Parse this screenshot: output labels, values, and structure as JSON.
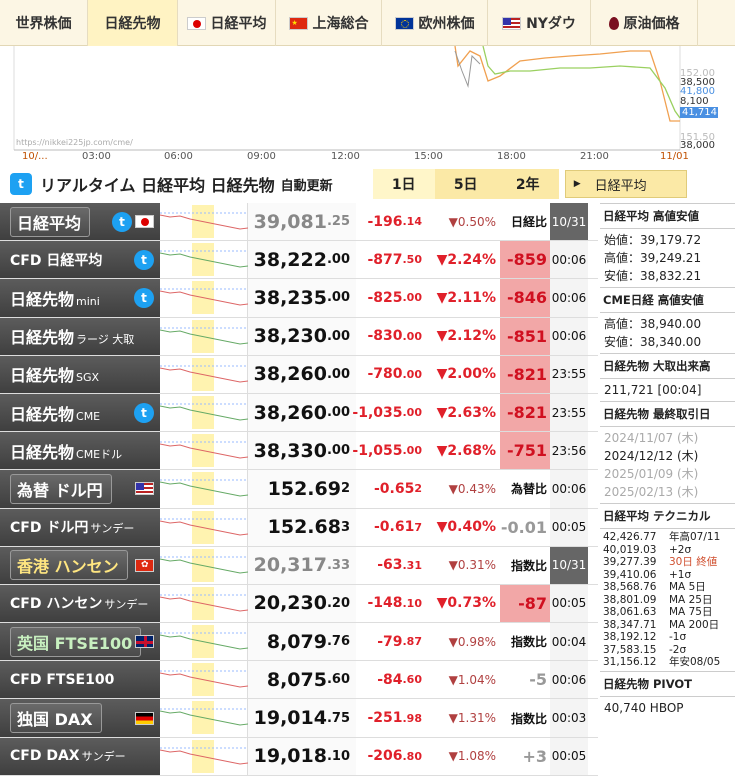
{
  "tabs": [
    {
      "label": "世界株価",
      "flag": "none"
    },
    {
      "label": "日経先物",
      "flag": "none",
      "active": true
    },
    {
      "label": "日経平均",
      "flag": "jp"
    },
    {
      "label": "上海総合",
      "flag": "cn"
    },
    {
      "label": "欧州株価",
      "flag": "eu"
    },
    {
      "label": "NYダウ",
      "flag": "us"
    },
    {
      "label": "原油価格",
      "flag": "oil"
    }
  ],
  "topchart": {
    "watermark": "https://nikkei225jp.com/cme/",
    "times": [
      "10/...",
      "03:00",
      "06:00",
      "09:00",
      "12:00",
      "15:00",
      "18:00",
      "21:00",
      "11/01"
    ],
    "axis": [
      "152.00",
      "38,500",
      "41,800",
      "8,100",
      "38,250",
      "41,714.9",
      "151.50",
      "38,000"
    ]
  },
  "header": {
    "title": "リアルタイム 日経平均 日経先物",
    "auto": "自動更新",
    "periods": [
      "1日",
      "5日",
      "2年"
    ],
    "link": "日経平均"
  },
  "rows": [
    {
      "name": "日経平均",
      "sub": "",
      "tw": true,
      "flag": "jp",
      "box": true,
      "price": "39,081",
      "pdec": ".25",
      "chg": "-196",
      "cdec": ".14",
      "pct": "▼0.50%",
      "diff": "日経比",
      "time": "10/31",
      "gray": true,
      "red": false,
      "dk": true
    },
    {
      "name": "CFD 日経平均",
      "sub": "",
      "tw": true,
      "flag": "",
      "box": false,
      "price": "38,222",
      "pdec": ".00",
      "chg": "-877",
      "cdec": ".50",
      "pct": "▼2.24%",
      "diff": "-859",
      "time": "00:06",
      "gray": false,
      "red": true,
      "dk": false
    },
    {
      "name": "日経先物",
      "sub": "mini",
      "tw": true,
      "flag": "",
      "box": false,
      "price": "38,235",
      "pdec": ".00",
      "chg": "-825",
      "cdec": ".00",
      "pct": "▼2.11%",
      "diff": "-846",
      "time": "00:06",
      "gray": false,
      "red": true,
      "dk": false
    },
    {
      "name": "日経先物",
      "sub": "ラージ 大取",
      "tw": false,
      "flag": "",
      "box": false,
      "price": "38,230",
      "pdec": ".00",
      "chg": "-830",
      "cdec": ".00",
      "pct": "▼2.12%",
      "diff": "-851",
      "time": "00:06",
      "gray": false,
      "red": true,
      "dk": false
    },
    {
      "name": "日経先物",
      "sub": "SGX",
      "tw": false,
      "flag": "",
      "box": false,
      "price": "38,260",
      "pdec": ".00",
      "chg": "-780",
      "cdec": ".00",
      "pct": "▼2.00%",
      "diff": "-821",
      "time": "23:55",
      "gray": false,
      "red": true,
      "dk": false
    },
    {
      "name": "日経先物",
      "sub": "CME",
      "tw": true,
      "flag": "",
      "box": false,
      "price": "38,260",
      "pdec": ".00",
      "chg": "-1,035",
      "cdec": ".00",
      "pct": "▼2.63%",
      "diff": "-821",
      "time": "23:55",
      "gray": false,
      "red": true,
      "dk": false
    },
    {
      "name": "日経先物",
      "sub": "CMEドル",
      "tw": false,
      "flag": "",
      "box": false,
      "price": "38,330",
      "pdec": ".00",
      "chg": "-1,055",
      "cdec": ".00",
      "pct": "▼2.68%",
      "diff": "-751",
      "time": "23:56",
      "gray": false,
      "red": true,
      "dk": false
    },
    {
      "name": "為替 ドル円",
      "sub": "",
      "tw": false,
      "flag": "us",
      "box": true,
      "price": "152.69",
      "pdec": "2",
      "chg": "-0.65",
      "cdec": "2",
      "pct": "▼0.43%",
      "diff": "為替比",
      "time": "00:06",
      "gray": false,
      "red": false,
      "dk": false
    },
    {
      "name": "CFD ドル円",
      "sub": "サンデー",
      "tw": false,
      "flag": "",
      "box": false,
      "price": "152.68",
      "pdec": "3",
      "chg": "-0.61",
      "cdec": "7",
      "pct": "▼0.40%",
      "diff": "-0.01",
      "time": "00:05",
      "gray": false,
      "red": false,
      "dk": false
    },
    {
      "name": "香港 ハンセン",
      "sub": "",
      "tw": false,
      "flag": "hk",
      "box": true,
      "price": "20,317",
      "pdec": ".33",
      "chg": "-63",
      "cdec": ".31",
      "pct": "▼0.31%",
      "diff": "指数比",
      "time": "10/31",
      "gray": true,
      "red": false,
      "dk": true
    },
    {
      "name": "CFD ハンセン",
      "sub": "サンデー",
      "tw": false,
      "flag": "",
      "box": false,
      "price": "20,230",
      "pdec": ".20",
      "chg": "-148",
      "cdec": ".10",
      "pct": "▼0.73%",
      "diff": "-87",
      "time": "00:05",
      "gray": false,
      "red": true,
      "dk": false
    },
    {
      "name": "英国 FTSE100",
      "sub": "",
      "tw": false,
      "flag": "uk",
      "box": true,
      "price": "8,079",
      "pdec": ".76",
      "chg": "-79",
      "cdec": ".87",
      "pct": "▼0.98%",
      "diff": "指数比",
      "time": "00:04",
      "gray": false,
      "red": false,
      "dk": false
    },
    {
      "name": "CFD FTSE100",
      "sub": "",
      "tw": false,
      "flag": "",
      "box": false,
      "price": "8,075",
      "pdec": ".60",
      "chg": "-84",
      "cdec": ".60",
      "pct": "▼1.04%",
      "diff": "-5",
      "time": "00:06",
      "gray": false,
      "red": false,
      "dk": false
    },
    {
      "name": "独国 DAX",
      "sub": "",
      "tw": false,
      "flag": "de",
      "box": true,
      "price": "19,014",
      "pdec": ".75",
      "chg": "-251",
      "cdec": ".98",
      "pct": "▼1.31%",
      "diff": "指数比",
      "time": "00:03",
      "gray": false,
      "red": false,
      "dk": false
    },
    {
      "name": "CFD DAX",
      "sub": "サンデー",
      "tw": false,
      "flag": "",
      "box": false,
      "price": "19,018",
      "pdec": ".10",
      "chg": "-206",
      "cdec": ".80",
      "pct": "▼1.08%",
      "diff": "+3",
      "time": "00:05",
      "gray": false,
      "red": false,
      "dk": false
    }
  ],
  "right": {
    "h1": "日経平均 高値安値",
    "b1": [
      "始値：39,179.72",
      "高値：39,249.21",
      "安値：38,832.21"
    ],
    "h2": "CME日経 高値安値",
    "b2": [
      "高値：38,940.00",
      "安値：38,340.00"
    ],
    "h3": "日経先物 大取出来高",
    "b3": [
      "211,721 [00:04]"
    ],
    "h4": "日経先物 最終取引日",
    "b4": [
      "2024/11/07 (木)",
      "2024/12/12 (木)",
      "2025/01/09 (木)",
      "2025/02/13 (木)"
    ],
    "h5": "日経平均 テクニカル",
    "tech": [
      [
        "42,426.77",
        "年高07/11"
      ],
      [
        "40,019.03",
        "+2σ"
      ],
      [
        "39,277.39",
        "30日 終値"
      ],
      [
        "39,410.06",
        "+1σ"
      ],
      [
        "38,568.76",
        "MA 5日"
      ],
      [
        "38,801.09",
        "MA 25日"
      ],
      [
        "38,061.63",
        "MA 75日"
      ],
      [
        "38,347.71",
        "MA 200日"
      ],
      [
        "38,192.12",
        "-1σ"
      ],
      [
        "37,583.15",
        "-2σ"
      ],
      [
        "31,156.12",
        "年安08/05"
      ]
    ],
    "h6": "日経先物 PIVOT",
    "b6": [
      "40,740 HBOP"
    ]
  }
}
